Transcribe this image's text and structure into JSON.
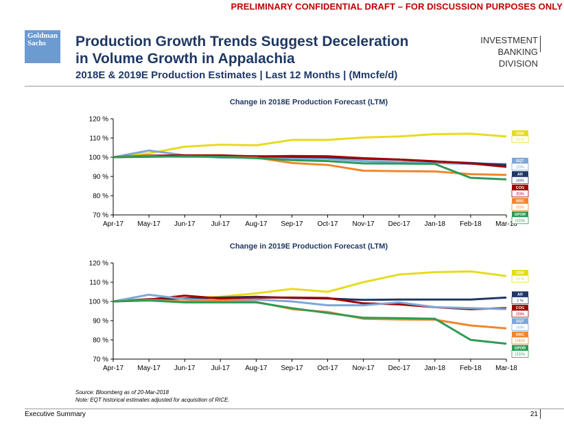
{
  "header": {
    "draft_notice": "PRELIMINARY CONFIDENTIAL DRAFT – FOR DISCUSSION PURPOSES ONLY",
    "logo_line1": "Goldman",
    "logo_line2": "Sachs",
    "title_line1": "Production Growth Trends Suggest Deceleration",
    "title_line2": "in Volume Growth in Appalachia",
    "subtitle": "2018E & 2019E Production Estimates | Last 12 Months | (Mmcfe/d)",
    "division_line1": "INVESTMENT BANKING",
    "division_line2": "DIVISION"
  },
  "chart_data": [
    {
      "type": "line",
      "title": "Change in 2018E Production Forecast (LTM)",
      "categories": [
        "Apr-17",
        "May-17",
        "Jun-17",
        "Jul-17",
        "Aug-17",
        "Sep-17",
        "Oct-17",
        "Nov-17",
        "Dec-17",
        "Jan-18",
        "Feb-18",
        "Mar-18"
      ],
      "y_ticks": [
        "70 %",
        "80 %",
        "90 %",
        "100 %",
        "110 %",
        "120 %"
      ],
      "ylim": [
        70,
        120
      ],
      "series": [
        {
          "name": "CNX",
          "color": "#e6dc1e",
          "label_value": "11 %",
          "values": [
            100,
            102,
            105.5,
            106.5,
            106.2,
            109,
            109,
            110.3,
            110.8,
            112,
            112.2,
            110.8
          ]
        },
        {
          "name": "EQT",
          "color": "#7ea6d8",
          "label_value": "(3)%",
          "values": [
            100,
            103.5,
            101,
            99.8,
            100,
            99.5,
            99.2,
            98,
            97.5,
            97,
            96.5,
            96.5
          ]
        },
        {
          "name": "AR",
          "color": "#1f3864",
          "label_value": "(4)%",
          "values": [
            100,
            100.5,
            100.8,
            100.6,
            100.5,
            100.2,
            100,
            99.2,
            98.8,
            97.8,
            97,
            96
          ]
        },
        {
          "name": "COG",
          "color": "#a00000",
          "label_value": "(5)%",
          "values": [
            100,
            100.8,
            101,
            101,
            100.4,
            100.6,
            100.5,
            99.5,
            98.8,
            97.9,
            96.8,
            95
          ]
        },
        {
          "name": "RRC",
          "color": "#f0862e",
          "label_value": "(9)%",
          "values": [
            100,
            100.5,
            100.2,
            100.2,
            99.8,
            97,
            96,
            93,
            92.8,
            92.6,
            91.2,
            90.8
          ]
        },
        {
          "name": "GPOR",
          "color": "#2e9a55",
          "label_value": "(12)%",
          "values": [
            100,
            100.2,
            100.5,
            100.2,
            99.5,
            98.5,
            98,
            96.8,
            96.7,
            96.5,
            89.3,
            88.5
          ]
        }
      ]
    },
    {
      "type": "line",
      "title": "Change in 2019E Production Forecast (LTM)",
      "categories": [
        "Apr-17",
        "May-17",
        "Jun-17",
        "Jul-17",
        "Aug-17",
        "Sep-17",
        "Oct-17",
        "Nov-17",
        "Dec-17",
        "Jan-18",
        "Feb-18",
        "Mar-18"
      ],
      "y_ticks": [
        "70 %",
        "80 %",
        "90 %",
        "100 %",
        "110 %",
        "120 %"
      ],
      "ylim": [
        70,
        120
      ],
      "series": [
        {
          "name": "CNX",
          "color": "#e6dc1e",
          "label_value": "13 %",
          "values": [
            100,
            101,
            101.5,
            102.5,
            104.2,
            106.5,
            105,
            110,
            114,
            115.2,
            115.6,
            113.2
          ]
        },
        {
          "name": "AR",
          "color": "#1f3864",
          "label_value": "2 %",
          "values": [
            100,
            101.2,
            101.5,
            102,
            102.4,
            101.8,
            101.5,
            100.8,
            101,
            101,
            101,
            102
          ]
        },
        {
          "name": "COG",
          "color": "#a00000",
          "label_value": "(3)%",
          "values": [
            100,
            101,
            103,
            101.5,
            102,
            102,
            101.8,
            99,
            98.5,
            97,
            96,
            96.5
          ]
        },
        {
          "name": "EQT",
          "color": "#7ea6d8",
          "label_value": "(4)%",
          "values": [
            100,
            103.5,
            101.2,
            100.5,
            101,
            100,
            98,
            98,
            99.5,
            97,
            96.5,
            96
          ]
        },
        {
          "name": "RRC",
          "color": "#f0862e",
          "label_value": "(14)%",
          "values": [
            100,
            100.8,
            100,
            100.2,
            99.8,
            96,
            94.5,
            91,
            90.6,
            90.5,
            87.5,
            86
          ]
        },
        {
          "name": "GPOR",
          "color": "#2e9a55",
          "label_value": "(22)%",
          "values": [
            100,
            100.5,
            99.5,
            99.5,
            99.5,
            96.5,
            94,
            91.5,
            91.3,
            91,
            80,
            78
          ]
        }
      ]
    }
  ],
  "footer": {
    "source": "Source: Bloomberg as of 20-Mar-2018",
    "note": "Note: EQT historical estimates adjusted for acquisition of RICE.",
    "section": "Executive Summary",
    "page_number": "21"
  }
}
